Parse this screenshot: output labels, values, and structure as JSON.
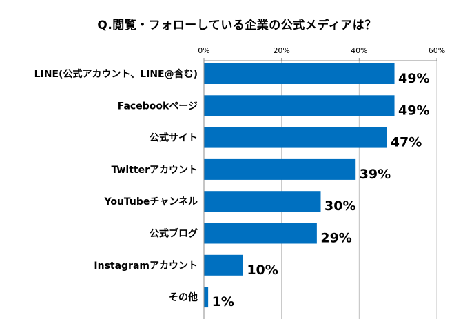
{
  "chart_data": {
    "type": "bar",
    "orientation": "horizontal",
    "title": "Q.閲覧・フォローしている企業の公式メディアは？",
    "categories": [
      "LINE(公式アカウント、LINE@含む)",
      "Facebookページ",
      "公式サイト",
      "Twitterアカウント",
      "YouTubeチャンネル",
      "公式ブログ",
      "Instagramアカウント",
      "その他"
    ],
    "values": [
      49,
      49,
      47,
      39,
      30,
      29,
      10,
      1
    ],
    "data_labels": [
      "49%",
      "49%",
      "47%",
      "39%",
      "30%",
      "29%",
      "10%",
      "1%"
    ],
    "x_ticks": [
      "0%",
      "20%",
      "40%",
      "60%"
    ],
    "x_tick_values": [
      0,
      20,
      40,
      60
    ],
    "xlim": [
      0,
      60
    ],
    "x_axis_position": "top",
    "grid": true,
    "legend": false,
    "bar_color": "#0070c0",
    "grid_color": "#bfbfbf"
  }
}
